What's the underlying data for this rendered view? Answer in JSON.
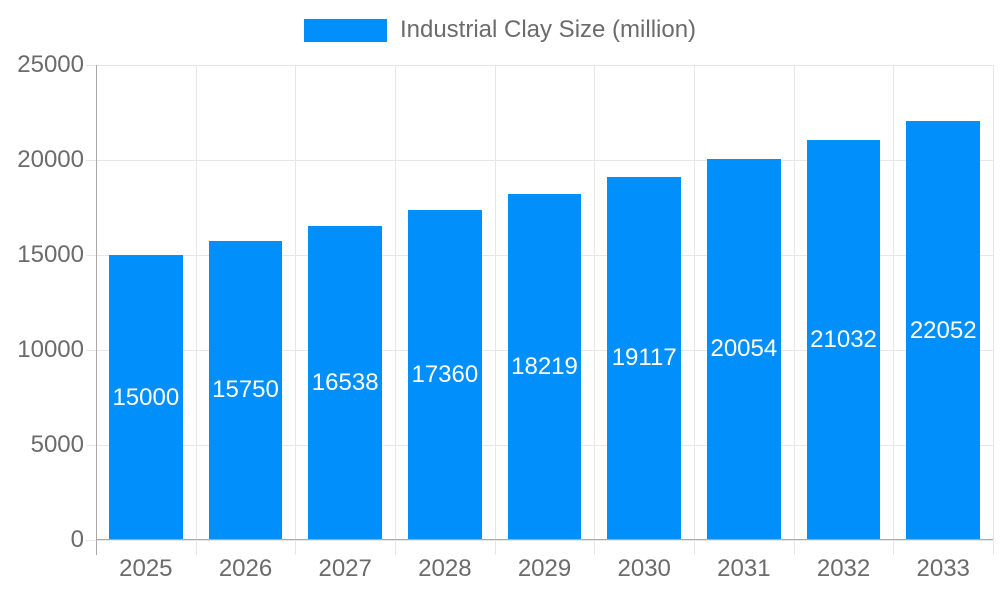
{
  "legend": {
    "label": "Industrial Clay Size (million)"
  },
  "colors": {
    "bar": "#008FFB",
    "grid": "#e7e7e7",
    "axis_line": "#a8a8a8",
    "axis_label": "#6b6b6b",
    "value_label": "#ffffff",
    "background": "#ffffff"
  },
  "chart_data": {
    "type": "bar",
    "title": "Industrial Clay Size (million)",
    "categories": [
      "2025",
      "2026",
      "2027",
      "2028",
      "2029",
      "2030",
      "2031",
      "2032",
      "2033"
    ],
    "series": [
      {
        "name": "Industrial Clay Size (million)",
        "values": [
          15000,
          15750,
          16538,
          17360,
          18219,
          19117,
          20054,
          21032,
          22052
        ]
      }
    ],
    "xlabel": "",
    "ylabel": "",
    "ylim": [
      0,
      25000
    ],
    "yticks": [
      0,
      5000,
      10000,
      15000,
      20000,
      25000
    ],
    "grid": true,
    "legend_position": "top",
    "value_label_position": "inside-center"
  }
}
